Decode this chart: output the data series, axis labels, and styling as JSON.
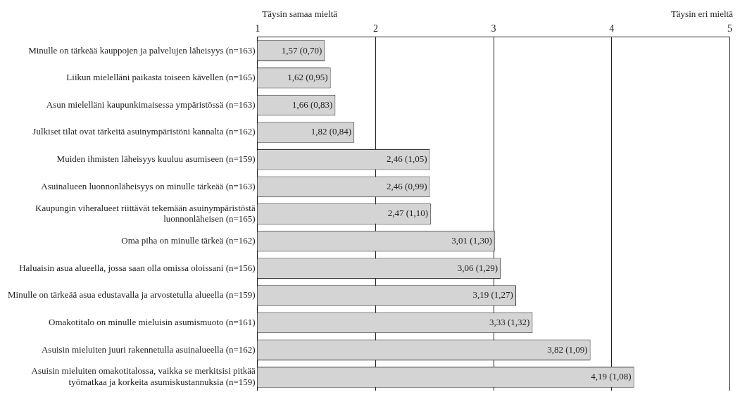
{
  "chart_data": {
    "type": "bar",
    "orientation": "horizontal",
    "categories": [
      "Minulle on tärkeää kauppojen ja palvelujen läheisyys (n=163)",
      "Liikun mielelläni paikasta toiseen kävellen (n=165)",
      "Asun mielelläni kaupunkimaisessa ympäristössä (n=163)",
      "Julkiset tilat ovat tärkeitä asuinympäristöni kannalta (n=162)",
      "Muiden ihmisten läheisyys kuuluu asumiseen (n=159)",
      "Asuinalueen luonnonläheisyys on minulle tärkeää (n=163)",
      "Kaupungin viheralueet riittävät tekemään asuinympäristöstä\nluonnonläheisen (n=165)",
      "Oma piha on minulle tärkeä (n=162)",
      "Haluaisin asua alueella, jossa saan olla omissa oloissani (n=156)",
      "Minulle on tärkeää asua edustavalla ja arvostetulla alueella (n=159)",
      "Omakotitalo on minulle mieluisin asumismuoto (n=161)",
      "Asuisin mieluiten juuri rakennetulla asuinalueella (n=162)",
      "Asuisin mieluiten omakotitalossa, vaikka se merkitsisi pitkää\ntyömatkaa ja korkeita asumiskustannuksia (n=159)"
    ],
    "values": [
      1.57,
      1.62,
      1.66,
      1.82,
      2.46,
      2.46,
      2.47,
      3.01,
      3.06,
      3.19,
      3.33,
      3.82,
      4.19
    ],
    "value_labels": [
      "1,57 (0,70)",
      "1,62 (0,95)",
      "1,66 (0,83)",
      "1,82 (0,84)",
      "2,46 (1,05)",
      "2,46 (0,99)",
      "2,47 (1,10)",
      "3,01 (1,30)",
      "3,06 (1,29)",
      "3,19 (1,27)",
      "3,33 (1,32)",
      "3,82 (1,09)",
      "4,19 (1,08)"
    ],
    "color": "#d4d4d4",
    "xlim": [
      1,
      5
    ],
    "xticks": [
      1,
      2,
      3,
      4,
      5
    ],
    "grid": "x",
    "legend": false,
    "annotations": [
      "Täysin samaa mieltä",
      "Täysin eri mieltä"
    ]
  }
}
